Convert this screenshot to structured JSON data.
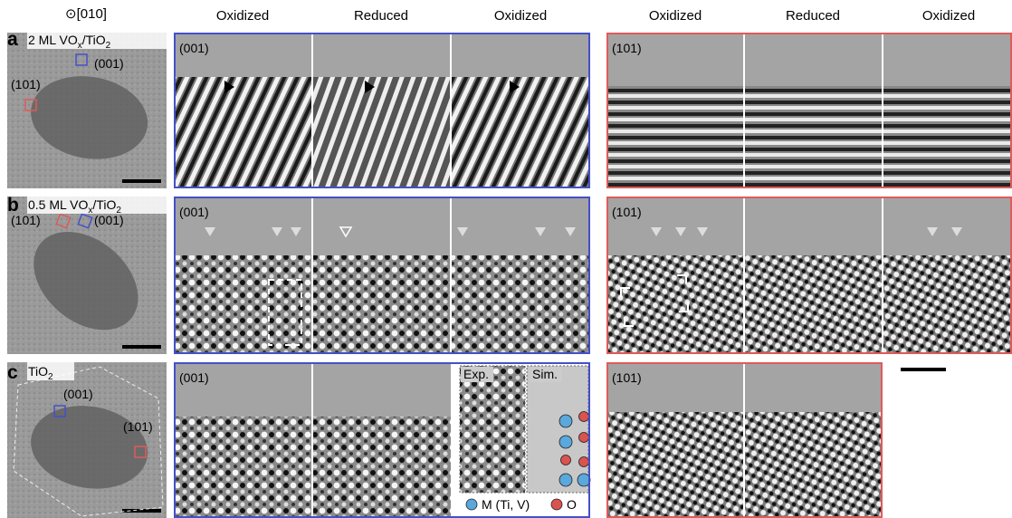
{
  "column_headers": {
    "overview": "⊙[010]",
    "blue": [
      "Oxidized",
      "Reduced",
      "Oxidized"
    ],
    "red": [
      "Oxidized",
      "Reduced",
      "Oxidized"
    ]
  },
  "rows": [
    {
      "letter": "a",
      "label": [
        "2 ML VO",
        "x",
        "/TiO",
        "2"
      ],
      "overview_facets": [
        "(001)",
        "(101)"
      ],
      "blue_facet": "(001)",
      "red_facet": "(101)"
    },
    {
      "letter": "b",
      "label": [
        "0.5 ML VO",
        "x",
        "/TiO",
        "2"
      ],
      "overview_facets": [
        "(101)",
        "(001)"
      ],
      "blue_facet": "(001)",
      "red_facet": "(101)"
    },
    {
      "letter": "c",
      "label": [
        "TiO",
        "2"
      ],
      "overview_facets": [
        "(001)",
        "(101)"
      ],
      "blue_facet": "(001)",
      "red_facet": "(101)"
    }
  ],
  "inset": {
    "exp": "Exp.",
    "sim": "Sim.",
    "legend": [
      "M (Ti, V)",
      "O"
    ]
  }
}
